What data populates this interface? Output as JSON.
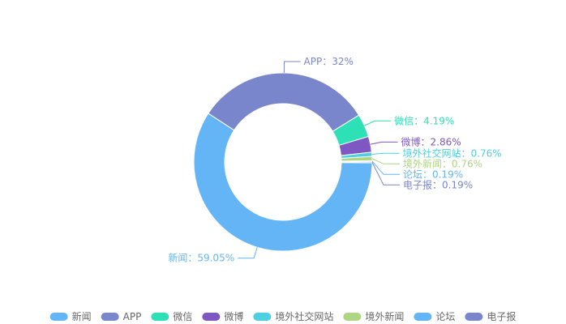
{
  "chart_data": {
    "type": "pie",
    "title": "",
    "donut": true,
    "legend_position": "bottom",
    "series": [
      {
        "name": "新闻",
        "value": 59.05,
        "label": "新闻：59.05%",
        "color": "#64b5f6"
      },
      {
        "name": "APP",
        "value": 32,
        "label": "APP：32%",
        "color": "#7986cb"
      },
      {
        "name": "微信",
        "value": 4.19,
        "label": "微信：4.19%",
        "color": "#2ee0b6"
      },
      {
        "name": "微博",
        "value": 2.86,
        "label": "微博：2.86%",
        "color": "#7e57c2"
      },
      {
        "name": "境外社交网站",
        "value": 0.76,
        "label": "境外社交网站：0.76%",
        "color": "#4dd0e1"
      },
      {
        "name": "境外新闻",
        "value": 0.76,
        "label": "境外新闻：0.76%",
        "color": "#aed581"
      },
      {
        "name": "论坛",
        "value": 0.19,
        "label": "论坛：0.19%",
        "color": "#64b5f6"
      },
      {
        "name": "电子报",
        "value": 0.19,
        "label": "电子报：0.19%",
        "color": "#7986cb"
      }
    ]
  }
}
